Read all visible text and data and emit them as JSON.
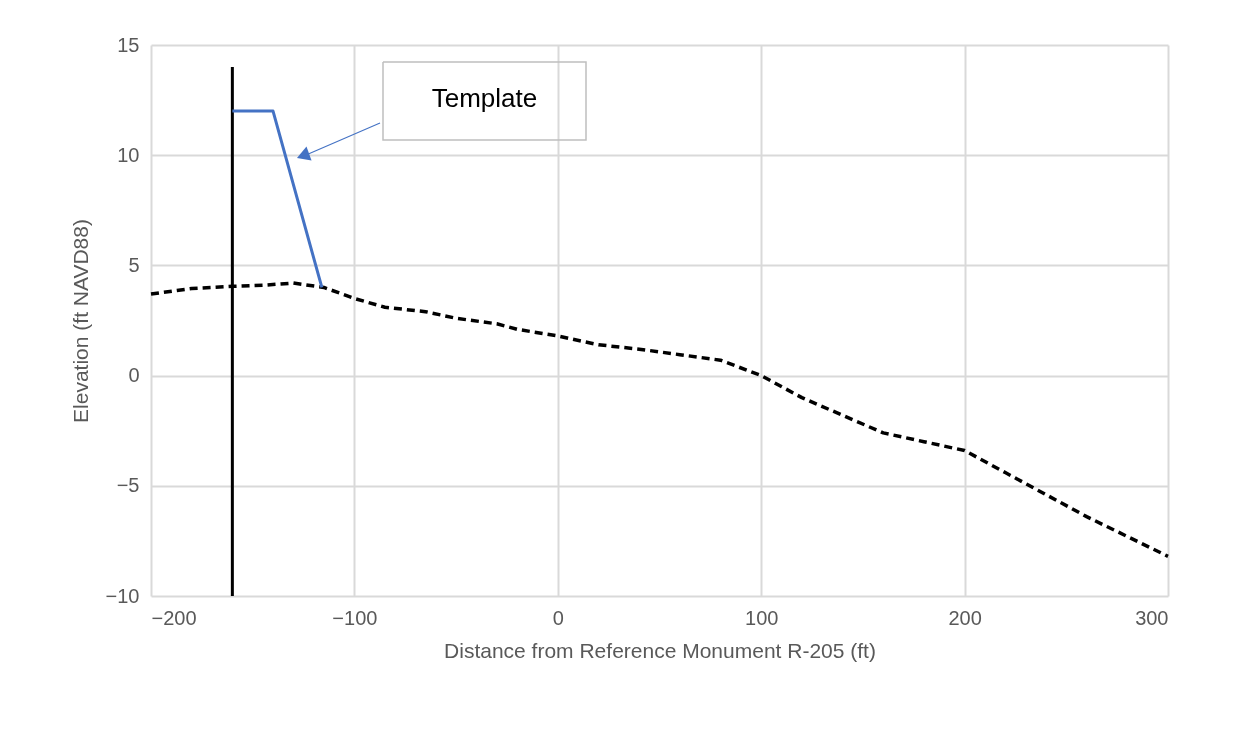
{
  "chart_data": {
    "type": "line",
    "xlabel": "Distance from Reference  Monument R-205 (ft)",
    "ylabel": "Elevation (ft NAVD88)",
    "xlim": [
      -200,
      300
    ],
    "xticks": [
      -200,
      -100,
      0,
      100,
      200,
      300
    ],
    "ylim": [
      -10,
      15
    ],
    "yticks": [
      -10,
      -5,
      0,
      5,
      10,
      15
    ],
    "grid": true,
    "series": [
      {
        "color": "#000000",
        "line_style": "dashed",
        "x": [
          -200,
          -180,
          -160,
          -145,
          -130,
          -115,
          -100,
          -85,
          -65,
          -50,
          -30,
          -20,
          0,
          20,
          40,
          60,
          80,
          100,
          120,
          140,
          160,
          180,
          200,
          220,
          240,
          260,
          280,
          300
        ],
        "values": [
          3.7,
          3.95,
          4.05,
          4.1,
          4.2,
          4.0,
          3.5,
          3.1,
          2.9,
          2.6,
          2.35,
          2.1,
          1.8,
          1.4,
          1.2,
          0.95,
          0.7,
          0.0,
          -1.0,
          -1.8,
          -2.6,
          -3.0,
          -3.4,
          -4.4,
          -5.4,
          -6.4,
          -7.3,
          -8.2
        ]
      },
      {
        "color": "#000000",
        "line_style": "solid",
        "x": [
          -160,
          -160
        ],
        "values": [
          -10,
          14
        ]
      },
      {
        "color": "#4472c4",
        "line_style": "solid",
        "x": [
          -160,
          -140,
          -116
        ],
        "values": [
          12,
          12,
          4
        ]
      }
    ],
    "annotations": [
      "Template"
    ]
  }
}
